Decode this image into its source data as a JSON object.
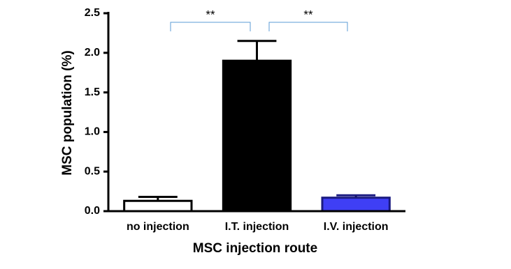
{
  "chart_data": {
    "type": "bar",
    "x_label": "MSC injection route",
    "y_label": "MSC population (%)",
    "categories": [
      "no injection",
      "I.T. injection",
      "I.V. injection"
    ],
    "values": [
      0.13,
      1.9,
      0.17
    ],
    "errors": [
      0.05,
      0.25,
      0.03
    ],
    "colors": [
      "#ffffff",
      "#000000",
      "#3f3ff5"
    ],
    "edge_colors": [
      "#000000",
      "#000000",
      "#1a1a80"
    ],
    "ylim": [
      0,
      2.5
    ],
    "yticks": [
      {
        "value": 0,
        "label": "0.0"
      },
      {
        "value": 0.5,
        "label": "0.5"
      },
      {
        "value": 1,
        "label": "1.0"
      },
      {
        "value": 1.5,
        "label": "1.5"
      },
      {
        "value": 2,
        "label": "2.0"
      },
      {
        "value": 2.5,
        "label": "2.5"
      }
    ],
    "annotations": [
      "**",
      "**"
    ],
    "annotation_color": "#5b9bd5"
  }
}
